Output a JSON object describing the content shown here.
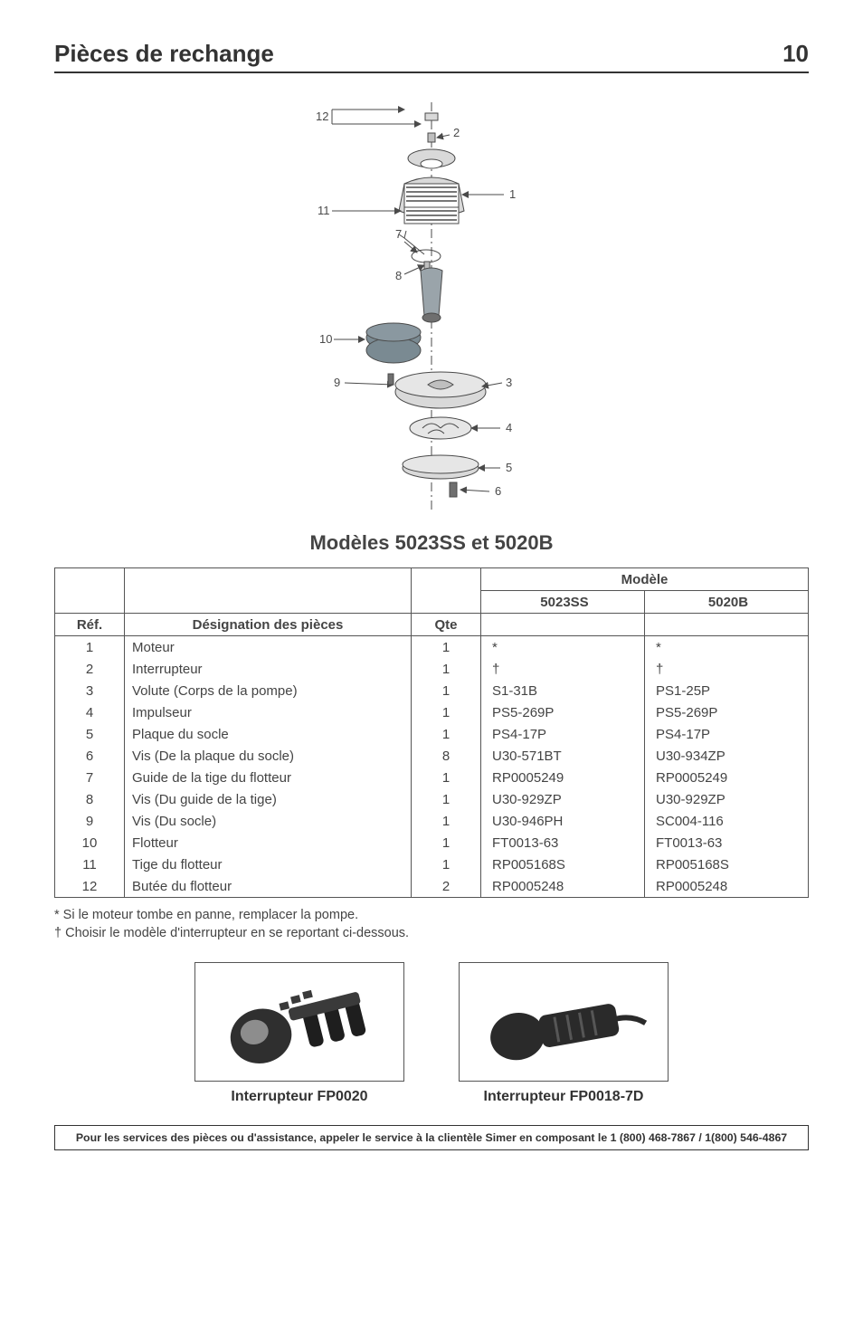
{
  "header": {
    "title": "Pièces de rechange",
    "page_number": "10"
  },
  "diagram": {
    "callouts": [
      "1",
      "2",
      "3",
      "4",
      "5",
      "6",
      "7",
      "8",
      "9",
      "10",
      "11",
      "12"
    ],
    "colors": {
      "line": "#4a4a4a",
      "fill_light": "#d9d9d9",
      "fill_mid": "#bfbfbf",
      "fill_dark": "#6f6f6f",
      "float_fill": "#7a8a92"
    }
  },
  "models_title": "Modèles 5023SS et 5020B",
  "table": {
    "headers": {
      "ref": "Réf.",
      "designation": "Désignation des pièces",
      "qte": "Qte",
      "modele_span": "Modèle",
      "model_a": "5023SS",
      "model_b": "5020B"
    },
    "rows": [
      {
        "ref": "1",
        "des": "Moteur",
        "qte": "1",
        "a": "*",
        "b": "*"
      },
      {
        "ref": "2",
        "des": "Interrupteur",
        "qte": "1",
        "a": "†",
        "b": "†"
      },
      {
        "ref": "3",
        "des": "Volute (Corps de la pompe)",
        "qte": "1",
        "a": "S1-31B",
        "b": "PS1-25P"
      },
      {
        "ref": "4",
        "des": "Impulseur",
        "qte": "1",
        "a": "PS5-269P",
        "b": "PS5-269P"
      },
      {
        "ref": "5",
        "des": "Plaque du socle",
        "qte": "1",
        "a": "PS4-17P",
        "b": "PS4-17P"
      },
      {
        "ref": "6",
        "des": "Vis (De la plaque du socle)",
        "qte": "8",
        "a": "U30-571BT",
        "b": "U30-934ZP"
      },
      {
        "ref": "7",
        "des": "Guide de la tige du flotteur",
        "qte": "1",
        "a": "RP0005249",
        "b": "RP0005249"
      },
      {
        "ref": "8",
        "des": "Vis (Du guide de la tige)",
        "qte": "1",
        "a": "U30-929ZP",
        "b": "U30-929ZP"
      },
      {
        "ref": "9",
        "des": "Vis (Du socle)",
        "qte": "1",
        "a": "U30-946PH",
        "b": "SC004-116"
      },
      {
        "ref": "10",
        "des": "Flotteur",
        "qte": "1",
        "a": "FT0013-63",
        "b": "FT0013-63"
      },
      {
        "ref": "11",
        "des": "Tige du flotteur",
        "qte": "1",
        "a": "RP005168S",
        "b": "RP005168S"
      },
      {
        "ref": "12",
        "des": "Butée du flotteur",
        "qte": "2",
        "a": "RP0005248",
        "b": "RP0005248"
      }
    ]
  },
  "footnotes": {
    "star": "* Si le moteur tombe en panne, remplacer la pompe.",
    "dagger": "† Choisir le modèle d'interrupteur en se reportant ci-dessous."
  },
  "switches": {
    "left_caption": "Interrupteur FP0020",
    "right_caption": "Interrupteur FP0018-7D"
  },
  "footer_bar": "Pour les services des pièces ou d'assistance, appeler le service à la clientèle Simer en composant le 1 (800) 468-7867 / 1(800) 546-4867"
}
